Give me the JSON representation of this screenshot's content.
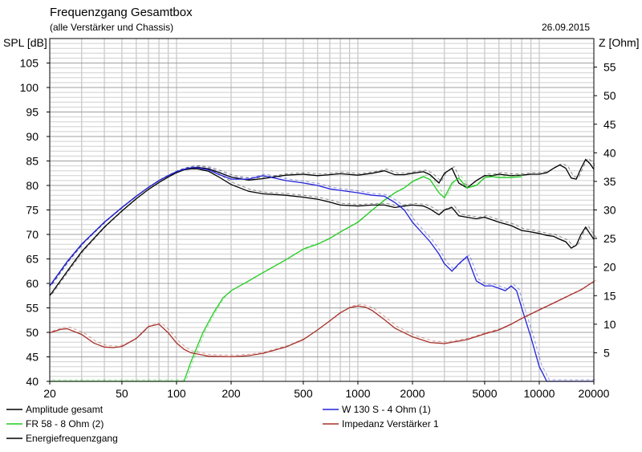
{
  "header": {
    "title": "Frequenzgang Gesamtbox",
    "subtitle": "(alle Verstärker und Chassis)",
    "date": "26.09.2015"
  },
  "chart_data": {
    "type": "line",
    "title": "Frequenzgang Gesamtbox",
    "subtitle": "(alle Verstärker und Chassis)",
    "ylabel": "SPL [dB]",
    "y2label": "Z [Ohm]",
    "xscale": "log",
    "xlim": [
      20,
      20000
    ],
    "ylim": [
      40,
      110
    ],
    "y2lim": [
      0,
      60
    ],
    "grid": true,
    "legend_position": "bottom",
    "x_ticks": [
      20,
      50,
      100,
      200,
      500,
      1000,
      2000,
      5000,
      10000,
      20000
    ],
    "y_ticks": [
      40,
      45,
      50,
      55,
      60,
      65,
      70,
      75,
      80,
      85,
      90,
      95,
      100,
      105
    ],
    "y2_ticks": [
      5,
      10,
      15,
      20,
      25,
      30,
      35,
      40,
      45,
      50,
      55
    ],
    "series": [
      {
        "name": "Amplitude gesamt",
        "axis": "left",
        "color": "#000000",
        "x": [
          20,
          25,
          30,
          40,
          50,
          60,
          70,
          80,
          90,
          100,
          110,
          120,
          130,
          150,
          170,
          200,
          250,
          300,
          400,
          500,
          600,
          700,
          800,
          1000,
          1200,
          1400,
          1600,
          1800,
          2000,
          2300,
          2500,
          2800,
          3000,
          3300,
          3600,
          4000,
          4500,
          5000,
          5500,
          6000,
          7000,
          8000,
          9000,
          10000,
          11000,
          12000,
          13000,
          14000,
          15000,
          16000,
          17000,
          18000,
          19000,
          20000
        ],
        "y": [
          59.5,
          64.5,
          68,
          72.5,
          75.5,
          77.8,
          79.6,
          81,
          82,
          82.8,
          83.3,
          83.6,
          83.7,
          83.4,
          82.7,
          81.7,
          81.1,
          81.4,
          82.1,
          82.3,
          82.0,
          82.2,
          82.4,
          82.1,
          82.5,
          83.0,
          82.2,
          82.2,
          82.5,
          82.8,
          82.2,
          80.5,
          82.5,
          83.5,
          80.5,
          79.5,
          81.0,
          82.0,
          82.0,
          82.3,
          82.0,
          82.1,
          82.3,
          82.3,
          82.6,
          83.5,
          84.2,
          83.5,
          81.5,
          81.3,
          83.5,
          85.3,
          84.5,
          83.3
        ]
      },
      {
        "name": "FR 58 - 8 Ohm (2)",
        "axis": "left",
        "color": "#22cc22",
        "x": [
          20,
          50,
          100,
          110,
          120,
          140,
          160,
          180,
          200,
          250,
          300,
          400,
          500,
          600,
          700,
          800,
          1000,
          1200,
          1400,
          1600,
          1800,
          2000,
          2300,
          2500,
          2800,
          3000,
          3300,
          3600,
          4000,
          4500,
          5000,
          5500,
          6000,
          7000,
          8000
        ],
        "y": [
          40,
          40,
          40,
          40,
          44,
          50,
          54,
          57,
          58.5,
          60.5,
          62.2,
          64.8,
          67.0,
          68.0,
          69.2,
          70.5,
          72.5,
          75.0,
          77.0,
          78.5,
          79.5,
          80.8,
          81.8,
          81.2,
          78.5,
          77.5,
          80.5,
          81.5,
          79.5,
          80.0,
          81.6,
          81.8,
          81.6,
          81.6,
          81.8
        ]
      },
      {
        "name": "Energiefrequenzgang",
        "axis": "left",
        "color": "#000000",
        "x": [
          20,
          25,
          30,
          40,
          50,
          60,
          70,
          80,
          90,
          100,
          110,
          120,
          130,
          150,
          170,
          200,
          250,
          300,
          400,
          500,
          600,
          700,
          800,
          1000,
          1200,
          1400,
          1600,
          1800,
          2000,
          2300,
          2500,
          2800,
          3000,
          3300,
          3600,
          4000,
          4500,
          5000,
          6000,
          7000,
          8000,
          9000,
          10000,
          11000,
          12000,
          13000,
          14000,
          15000,
          16000,
          17000,
          18000,
          19000,
          20000
        ],
        "y": [
          57.5,
          62.5,
          66.5,
          71.5,
          74.8,
          77.3,
          79.2,
          80.6,
          81.7,
          82.6,
          83.2,
          83.4,
          83.4,
          82.9,
          81.8,
          80.2,
          78.8,
          78.3,
          78.0,
          77.6,
          77.2,
          76.6,
          76.0,
          75.8,
          76.0,
          76.0,
          75.5,
          75.8,
          76.0,
          75.8,
          75.2,
          74.0,
          75.0,
          75.5,
          73.8,
          73.5,
          73.2,
          73.5,
          72.5,
          71.8,
          70.8,
          70.5,
          70.2,
          69.8,
          69.6,
          69.0,
          68.5,
          67.2,
          67.8,
          70.0,
          71.5,
          70.2,
          69.0
        ]
      },
      {
        "name": "W 130 S - 4 Ohm (1)",
        "axis": "left",
        "color": "#2222dd",
        "x": [
          20,
          25,
          30,
          40,
          50,
          60,
          70,
          80,
          90,
          100,
          110,
          120,
          130,
          150,
          170,
          200,
          250,
          300,
          400,
          500,
          600,
          700,
          800,
          1000,
          1200,
          1400,
          1600,
          1800,
          2000,
          2300,
          2500,
          2800,
          3000,
          3300,
          3600,
          4000,
          4500,
          5000,
          5500,
          6000,
          6500,
          7000,
          7500,
          8000,
          9000,
          10000,
          10500,
          11000,
          12000,
          15000,
          20000
        ],
        "y": [
          59.5,
          64.5,
          68,
          72.5,
          75.5,
          77.8,
          79.6,
          81,
          82,
          82.8,
          83.3,
          83.6,
          83.6,
          83.2,
          82.3,
          81.3,
          81.3,
          82.0,
          81.0,
          80.5,
          80.0,
          79.3,
          79.0,
          78.5,
          78.0,
          77.8,
          76.5,
          75.0,
          72.5,
          70.0,
          68.5,
          66.0,
          64.0,
          62.5,
          64.0,
          65.5,
          60.5,
          59.5,
          59.5,
          59.0,
          58.5,
          59.5,
          58.5,
          55.0,
          49.0,
          43.0,
          41.5,
          40,
          40,
          40,
          40
        ]
      },
      {
        "name": "Impedanz Verstärker 1",
        "axis": "right",
        "color": "#a8302a",
        "x": [
          20,
          23,
          25,
          30,
          35,
          40,
          45,
          50,
          60,
          70,
          80,
          90,
          100,
          110,
          120,
          150,
          200,
          250,
          300,
          400,
          500,
          600,
          700,
          800,
          900,
          1000,
          1100,
          1200,
          1400,
          1600,
          2000,
          2500,
          3000,
          4000,
          5000,
          6000,
          7000,
          8000,
          10000,
          12000,
          15000,
          17000,
          20000
        ],
        "y": [
          8.5,
          9.1,
          9.2,
          8.2,
          6.7,
          6.0,
          5.9,
          6.1,
          7.5,
          9.6,
          10.0,
          8.5,
          6.7,
          5.6,
          5.0,
          4.4,
          4.3,
          4.5,
          4.9,
          6.0,
          7.3,
          9.0,
          10.6,
          12.0,
          12.9,
          13.2,
          13.0,
          12.4,
          10.8,
          9.3,
          7.8,
          6.8,
          6.6,
          7.3,
          8.3,
          9.0,
          10.0,
          11.0,
          12.5,
          13.7,
          15.2,
          16.0,
          17.5
        ]
      }
    ]
  },
  "legend": [
    {
      "name": "Amplitude gesamt",
      "color": "#000000"
    },
    {
      "name": "W 130 S - 4 Ohm (1)",
      "color": "#2222dd"
    },
    {
      "name": "FR 58 - 8 Ohm (2)",
      "color": "#22cc22"
    },
    {
      "name": "Impedanz Verstärker 1",
      "color": "#a8302a"
    },
    {
      "name": "Energiefrequenzgang",
      "color": "#000000"
    }
  ]
}
